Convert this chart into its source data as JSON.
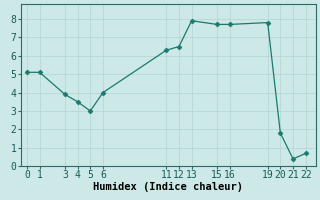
{
  "x": [
    0,
    1,
    3,
    4,
    5,
    6,
    11,
    12,
    13,
    15,
    16,
    19,
    20,
    21,
    22
  ],
  "y": [
    5.1,
    5.1,
    3.9,
    3.5,
    3.0,
    4.0,
    6.3,
    6.5,
    7.9,
    7.7,
    7.7,
    7.8,
    1.8,
    0.4,
    0.7
  ],
  "line_color": "#1a7a6e",
  "marker": "D",
  "marker_size": 2.5,
  "background_color": "#cce9e7",
  "grid_color": "#b8d8d5",
  "xlabel": "Humidex (Indice chaleur)",
  "xlabel_fontsize": 7.5,
  "tick_fontsize": 7,
  "xlim": [
    -0.5,
    22.8
  ],
  "ylim": [
    0,
    8.8
  ],
  "xticks": [
    0,
    1,
    3,
    4,
    5,
    6,
    11,
    12,
    13,
    15,
    16,
    19,
    20,
    21,
    22
  ],
  "yticks": [
    0,
    1,
    2,
    3,
    4,
    5,
    6,
    7,
    8
  ]
}
